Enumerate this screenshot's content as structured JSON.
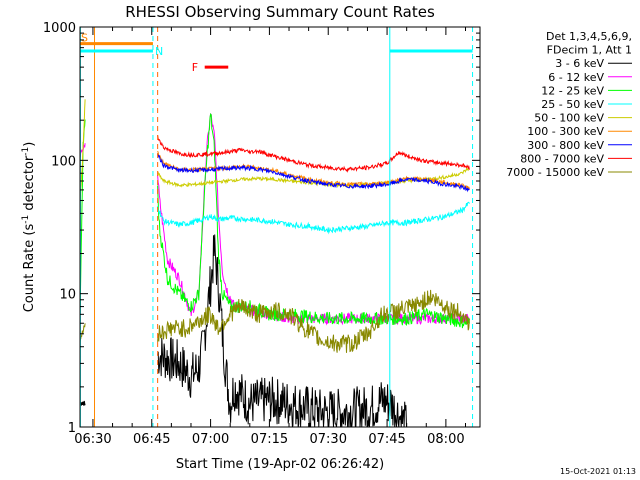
{
  "chart_data": {
    "type": "line",
    "title": "RHESSI Observing Summary Count Rates",
    "xlabel": "Start Time (19-Apr-02 06:26:42)",
    "ylabel": "Count Rate (s⁻¹ detector⁻¹)",
    "ylabel_parts": {
      "prefix": "Count Rate (s",
      "exp1": "-1",
      "middle": " detector",
      "exp2": "-1",
      "suffix": ")"
    },
    "yscale": "log",
    "xlim_minutes": [
      26.7,
      128.7
    ],
    "ylim": [
      1,
      1000
    ],
    "x_ticks": [
      {
        "label": "06:30",
        "minute": 30
      },
      {
        "label": "06:45",
        "minute": 45
      },
      {
        "label": "07:00",
        "minute": 60
      },
      {
        "label": "07:15",
        "minute": 75
      },
      {
        "label": "07:30",
        "minute": 90
      },
      {
        "label": "07:45",
        "minute": 105
      },
      {
        "label": "08:00",
        "minute": 120
      }
    ],
    "y_ticks": [
      {
        "label": "1",
        "value": 1
      },
      {
        "label": "10",
        "value": 10
      },
      {
        "label": "100",
        "value": 100
      },
      {
        "label": "1000",
        "value": 1000
      }
    ],
    "legend_header": [
      "Det 1,3,4,5,6,9,",
      "FDecim 1, Att 1"
    ],
    "legend_position": "right",
    "series": [
      {
        "name": "3 - 6 keV",
        "color": "#000000",
        "x": [
          46.5,
          52,
          55,
          57,
          58,
          60,
          61,
          62,
          63,
          64,
          65,
          66,
          70,
          75,
          80,
          84,
          88,
          95,
          101,
          104,
          106,
          110
        ],
        "y": [
          3.5,
          3,
          2.4,
          2.8,
          3.8,
          12,
          21,
          12,
          5,
          2.5,
          1.5,
          2,
          1.5,
          1.6,
          1.5,
          1.4,
          1.3,
          1.3,
          1.4,
          1.6,
          1.5,
          1
        ]
      },
      {
        "name": "6 - 12 keV",
        "color": "#ff00ff",
        "x": [
          46.5,
          47,
          49,
          52,
          55,
          57,
          58,
          59,
          60,
          61,
          61.5,
          62,
          63,
          64,
          66,
          70,
          75,
          80,
          90,
          100,
          108,
          110,
          120,
          126
        ],
        "y": [
          80,
          50,
          18,
          13,
          7,
          10,
          35,
          120,
          220,
          150,
          80,
          40,
          15,
          11,
          8,
          7.5,
          7,
          6.5,
          6.5,
          6.5,
          6.5,
          6.5,
          6.5,
          6.5
        ]
      },
      {
        "name": "12 - 25 keV",
        "color": "#00ff00",
        "x": [
          46.5,
          47,
          49,
          52,
          55,
          57,
          58,
          59,
          60,
          61,
          61.5,
          62,
          63,
          65,
          70,
          75,
          80,
          90,
          100,
          110,
          115,
          120,
          126
        ],
        "y": [
          60,
          30,
          13,
          10,
          8,
          10,
          35,
          100,
          220,
          120,
          50,
          20,
          10,
          8,
          8,
          7,
          7,
          6.5,
          6.5,
          6.5,
          7,
          6.5,
          6
        ]
      },
      {
        "name": "25 - 50 keV",
        "color": "#00ffff",
        "x": [
          46.5,
          48,
          52,
          55,
          58,
          60,
          62,
          65,
          70,
          75,
          80,
          85,
          90,
          95,
          100,
          105,
          110,
          115,
          120,
          124,
          126
        ],
        "y": [
          45,
          35,
          33,
          34,
          36,
          38,
          36,
          37,
          36,
          35,
          33,
          32,
          30,
          31,
          32,
          34,
          34,
          36,
          38,
          42,
          48
        ]
      },
      {
        "name": "50 - 100 keV",
        "color": "#cccc00",
        "x": [
          46.5,
          48,
          52,
          56,
          60,
          64,
          68,
          72,
          76,
          80,
          85,
          90,
          95,
          100,
          105,
          110,
          115,
          120,
          124,
          126
        ],
        "y": [
          80,
          70,
          65,
          66,
          68,
          70,
          72,
          73,
          72,
          70,
          68,
          66,
          65,
          66,
          68,
          70,
          72,
          75,
          80,
          88
        ]
      },
      {
        "name": "100 - 300 keV",
        "color": "#ff8800",
        "x": [
          46.5,
          48,
          52,
          56,
          60,
          64,
          68,
          72,
          76,
          80,
          85,
          90,
          95,
          100,
          105,
          110,
          115,
          120,
          124,
          126
        ],
        "y": [
          115,
          95,
          85,
          85,
          86,
          88,
          90,
          88,
          84,
          78,
          72,
          68,
          66,
          66,
          68,
          73,
          72,
          68,
          65,
          62
        ]
      },
      {
        "name": "300 - 800 keV",
        "color": "#0000ff",
        "x": [
          46.5,
          48,
          52,
          56,
          60,
          64,
          68,
          72,
          76,
          80,
          85,
          90,
          95,
          100,
          105,
          110,
          115,
          120,
          124,
          126
        ],
        "y": [
          110,
          92,
          84,
          84,
          85,
          87,
          88,
          86,
          82,
          76,
          70,
          66,
          64,
          64,
          66,
          72,
          70,
          66,
          63,
          60
        ]
      },
      {
        "name": "800 - 7000 keV",
        "color": "#ff0000",
        "x": [
          46.5,
          48,
          52,
          56,
          60,
          64,
          68,
          70,
          72,
          74,
          76,
          80,
          85,
          90,
          95,
          100,
          105,
          108,
          110,
          115,
          120,
          124,
          126
        ],
        "y": [
          150,
          125,
          112,
          110,
          112,
          115,
          120,
          115,
          118,
          112,
          108,
          100,
          92,
          88,
          86,
          88,
          95,
          115,
          108,
          98,
          95,
          92,
          88
        ]
      },
      {
        "name": "7000 - 15000 keV",
        "color": "#888800",
        "x": [
          46.5,
          50,
          54,
          58,
          60,
          62,
          64,
          66,
          68,
          72,
          76,
          80,
          84,
          88,
          92,
          96,
          100,
          104,
          108,
          112,
          116,
          120,
          124,
          126
        ],
        "y": [
          5,
          5.5,
          5.5,
          6.5,
          7,
          5.5,
          6.5,
          7.5,
          8,
          7,
          7.5,
          7,
          5.5,
          4.5,
          4.2,
          4.2,
          5,
          7,
          7.5,
          8,
          9.5,
          8,
          7,
          6
        ]
      }
    ],
    "left_segments": [
      {
        "name": "3 - 6 keV",
        "color": "#000000",
        "x": [
          26.7,
          28
        ],
        "y": [
          1.5,
          1.5
        ]
      },
      {
        "name": "6 - 12 keV",
        "color": "#ff00ff",
        "x": [
          26.7,
          27.5,
          28
        ],
        "y": [
          110,
          120,
          130
        ]
      },
      {
        "name": "12 - 25 keV",
        "color": "#00ff00",
        "x": [
          26.7,
          27.5,
          28
        ],
        "y": [
          7,
          130,
          200
        ]
      },
      {
        "name": "50 - 100 keV",
        "color": "#cccc00",
        "x": [
          26.7,
          27.5,
          28
        ],
        "y": [
          50,
          120,
          300
        ]
      },
      {
        "name": "7000 - 15000 keV",
        "color": "#888800",
        "x": [
          26.7,
          28
        ],
        "y": [
          4.5,
          6
        ]
      }
    ],
    "time_markers": [
      {
        "type": "solid",
        "color": "#00ffff",
        "minute": 26.8
      },
      {
        "type": "solid",
        "color": "#ff8800",
        "minute": 30.4
      },
      {
        "type": "dashed",
        "color": "#00ffff",
        "minute": 45.3
      },
      {
        "type": "dashed",
        "color": "#ff6600",
        "minute": 46.5
      },
      {
        "type": "solid",
        "color": "#00ffff",
        "minute": 105.7
      },
      {
        "type": "dashed",
        "color": "#00ffff",
        "minute": 126.8
      }
    ],
    "flag_bars": [
      {
        "label": "S",
        "color": "#ff8800",
        "x": [
          26.7,
          45.3
        ],
        "y": 750
      },
      {
        "label": "N",
        "color": "#00ffff",
        "x": [
          26.7,
          45.3
        ],
        "y": 660
      },
      {
        "label": "",
        "color": "#00ffff",
        "x": [
          105.7,
          126.8
        ],
        "y": 660
      },
      {
        "label": "F",
        "color": "#ff0000",
        "x": [
          58.5,
          64.5
        ],
        "y": 500
      }
    ]
  },
  "timestamp": "15-Oct-2021 01:13"
}
